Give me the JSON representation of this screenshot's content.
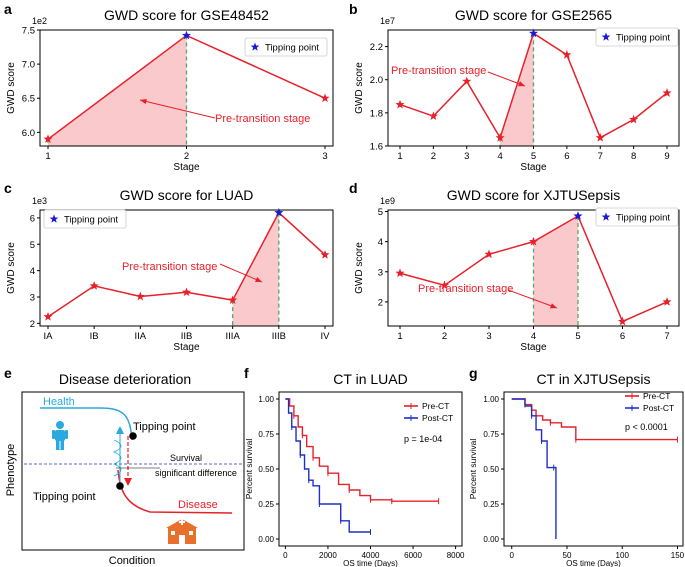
{
  "chart_data": [
    {
      "panel": "a",
      "type": "line",
      "title": "GWD score for GSE48452",
      "xlabel": "Stage",
      "ylabel": "GWD score",
      "scale_label": "1e2",
      "categories": [
        "1",
        "2",
        "3"
      ],
      "values": [
        5.9,
        7.42,
        6.5
      ],
      "yticks": [
        "6.0",
        "6.5",
        "7.0",
        "7.5"
      ],
      "ylim": [
        5.8,
        7.5
      ],
      "tipping_index": 1,
      "shade_range": [
        0,
        1
      ],
      "legend": "Tipping point",
      "annotation": "Pre-transition stage"
    },
    {
      "panel": "b",
      "type": "line",
      "title": "GWD score for GSE2565",
      "xlabel": "Stage",
      "ylabel": "GWD score",
      "scale_label": "1e7",
      "categories": [
        "1",
        "2",
        "3",
        "4",
        "5",
        "6",
        "7",
        "8",
        "9"
      ],
      "values": [
        1.85,
        1.78,
        1.99,
        1.65,
        2.28,
        2.15,
        1.65,
        1.76,
        1.92
      ],
      "yticks": [
        "1.6",
        "1.8",
        "2.0",
        "2.2"
      ],
      "ylim": [
        1.6,
        2.3
      ],
      "tipping_index": 4,
      "shade_range": [
        3,
        4
      ],
      "legend": "Tipping point",
      "annotation": "Pre-transition stage"
    },
    {
      "panel": "c",
      "type": "line",
      "title": "GWD score for LUAD",
      "xlabel": "Stage",
      "ylabel": "GWD score",
      "scale_label": "1e3",
      "categories": [
        "IA",
        "IB",
        "IIA",
        "IIB",
        "IIIA",
        "IIIB",
        "IV"
      ],
      "values": [
        2.25,
        3.42,
        3.02,
        3.18,
        2.88,
        6.2,
        4.6
      ],
      "yticks": [
        "2",
        "3",
        "4",
        "5",
        "6"
      ],
      "ylim": [
        1.9,
        6.3
      ],
      "tipping_index": 5,
      "shade_range": [
        4,
        5
      ],
      "legend": "Tipping point",
      "annotation": "Pre-transition stage"
    },
    {
      "panel": "d",
      "type": "line",
      "title": "GWD score for XJTUSepsis",
      "xlabel": "Stage",
      "ylabel": "GWD score",
      "scale_label": "1e9",
      "categories": [
        "1",
        "2",
        "3",
        "4",
        "5",
        "6",
        "7"
      ],
      "values": [
        2.95,
        2.55,
        3.58,
        4.0,
        4.85,
        1.35,
        2.0
      ],
      "yticks": [
        "2",
        "3",
        "4",
        "5"
      ],
      "ylim": [
        1.2,
        5.05
      ],
      "tipping_index": 4,
      "shade_range": [
        3,
        4
      ],
      "legend": "Tipping point",
      "annotation": "Pre-transition stage"
    },
    {
      "panel": "f",
      "type": "line",
      "title": "CT in LUAD",
      "xlabel": "OS time (Days)",
      "ylabel": "Percent survival",
      "xticks": [
        "0",
        "2000",
        "4000",
        "6000",
        "8000"
      ],
      "xlim": [
        -300,
        8300
      ],
      "yticks": [
        "0.00",
        "0.25",
        "0.50",
        "0.75",
        "1.00"
      ],
      "ylim": [
        -0.05,
        1.05
      ],
      "series": [
        {
          "name": "Pre-CT",
          "color": "#e8202a",
          "x": [
            0,
            200,
            400,
            600,
            800,
            1000,
            1300,
            1600,
            2000,
            2500,
            3000,
            3500,
            4000,
            4600,
            5000,
            6000,
            7200
          ],
          "y": [
            1.0,
            0.95,
            0.88,
            0.8,
            0.74,
            0.66,
            0.58,
            0.52,
            0.47,
            0.39,
            0.35,
            0.31,
            0.28,
            0.28,
            0.27,
            0.27,
            0.27
          ]
        },
        {
          "name": "Post-CT",
          "color": "#1f2ec8",
          "x": [
            0,
            150,
            300,
            500,
            700,
            900,
            1100,
            1300,
            1600,
            2000,
            2600,
            3000,
            4000
          ],
          "y": [
            1.0,
            0.9,
            0.8,
            0.7,
            0.6,
            0.5,
            0.42,
            0.38,
            0.25,
            0.25,
            0.13,
            0.05,
            0.05
          ]
        }
      ],
      "annotation": "p = 1e-04"
    },
    {
      "panel": "g",
      "type": "line",
      "title": "CT in XJTUSepsis",
      "xlabel": "OS time (Days)",
      "ylabel": "Percent survival",
      "xticks": [
        "0",
        "50",
        "100",
        "150"
      ],
      "xlim": [
        -7,
        155
      ],
      "yticks": [
        "0.00",
        "0.25",
        "0.50",
        "0.75",
        "1.00"
      ],
      "ylim": [
        -0.05,
        1.05
      ],
      "series": [
        {
          "name": "Pre-CT",
          "color": "#e8202a",
          "x": [
            0,
            8,
            12,
            18,
            22,
            28,
            35,
            45,
            58,
            80,
            150
          ],
          "y": [
            1.0,
            1.0,
            0.96,
            0.92,
            0.88,
            0.85,
            0.83,
            0.8,
            0.71,
            0.71,
            0.71
          ]
        },
        {
          "name": "Post-CT",
          "color": "#1f2ec8",
          "x": [
            0,
            12,
            18,
            22,
            27,
            32,
            38,
            40
          ],
          "y": [
            1.0,
            0.95,
            0.88,
            0.78,
            0.7,
            0.51,
            0.51,
            0.0
          ]
        }
      ],
      "annotation": "p < 0.0001"
    }
  ],
  "panel_labels": {
    "a": "a",
    "b": "b",
    "c": "c",
    "d": "d",
    "e": "e",
    "f": "f",
    "g": "g"
  },
  "diagram": {
    "title": "Disease deterioration",
    "health": "Health",
    "disease": "Disease",
    "tipping_top": "Tipping point",
    "tipping_bottom": "Tipping point",
    "survival": "Survival",
    "significant": "significant difference",
    "xlabel": "Condition",
    "ylabel": "Phenotype"
  },
  "colors": {
    "red": "#e8202a",
    "pink_fill": "#f9c9cc",
    "blue_star": "#1a1ad6",
    "green_dash": "#55a868",
    "health_cyan": "#29a9e0"
  }
}
